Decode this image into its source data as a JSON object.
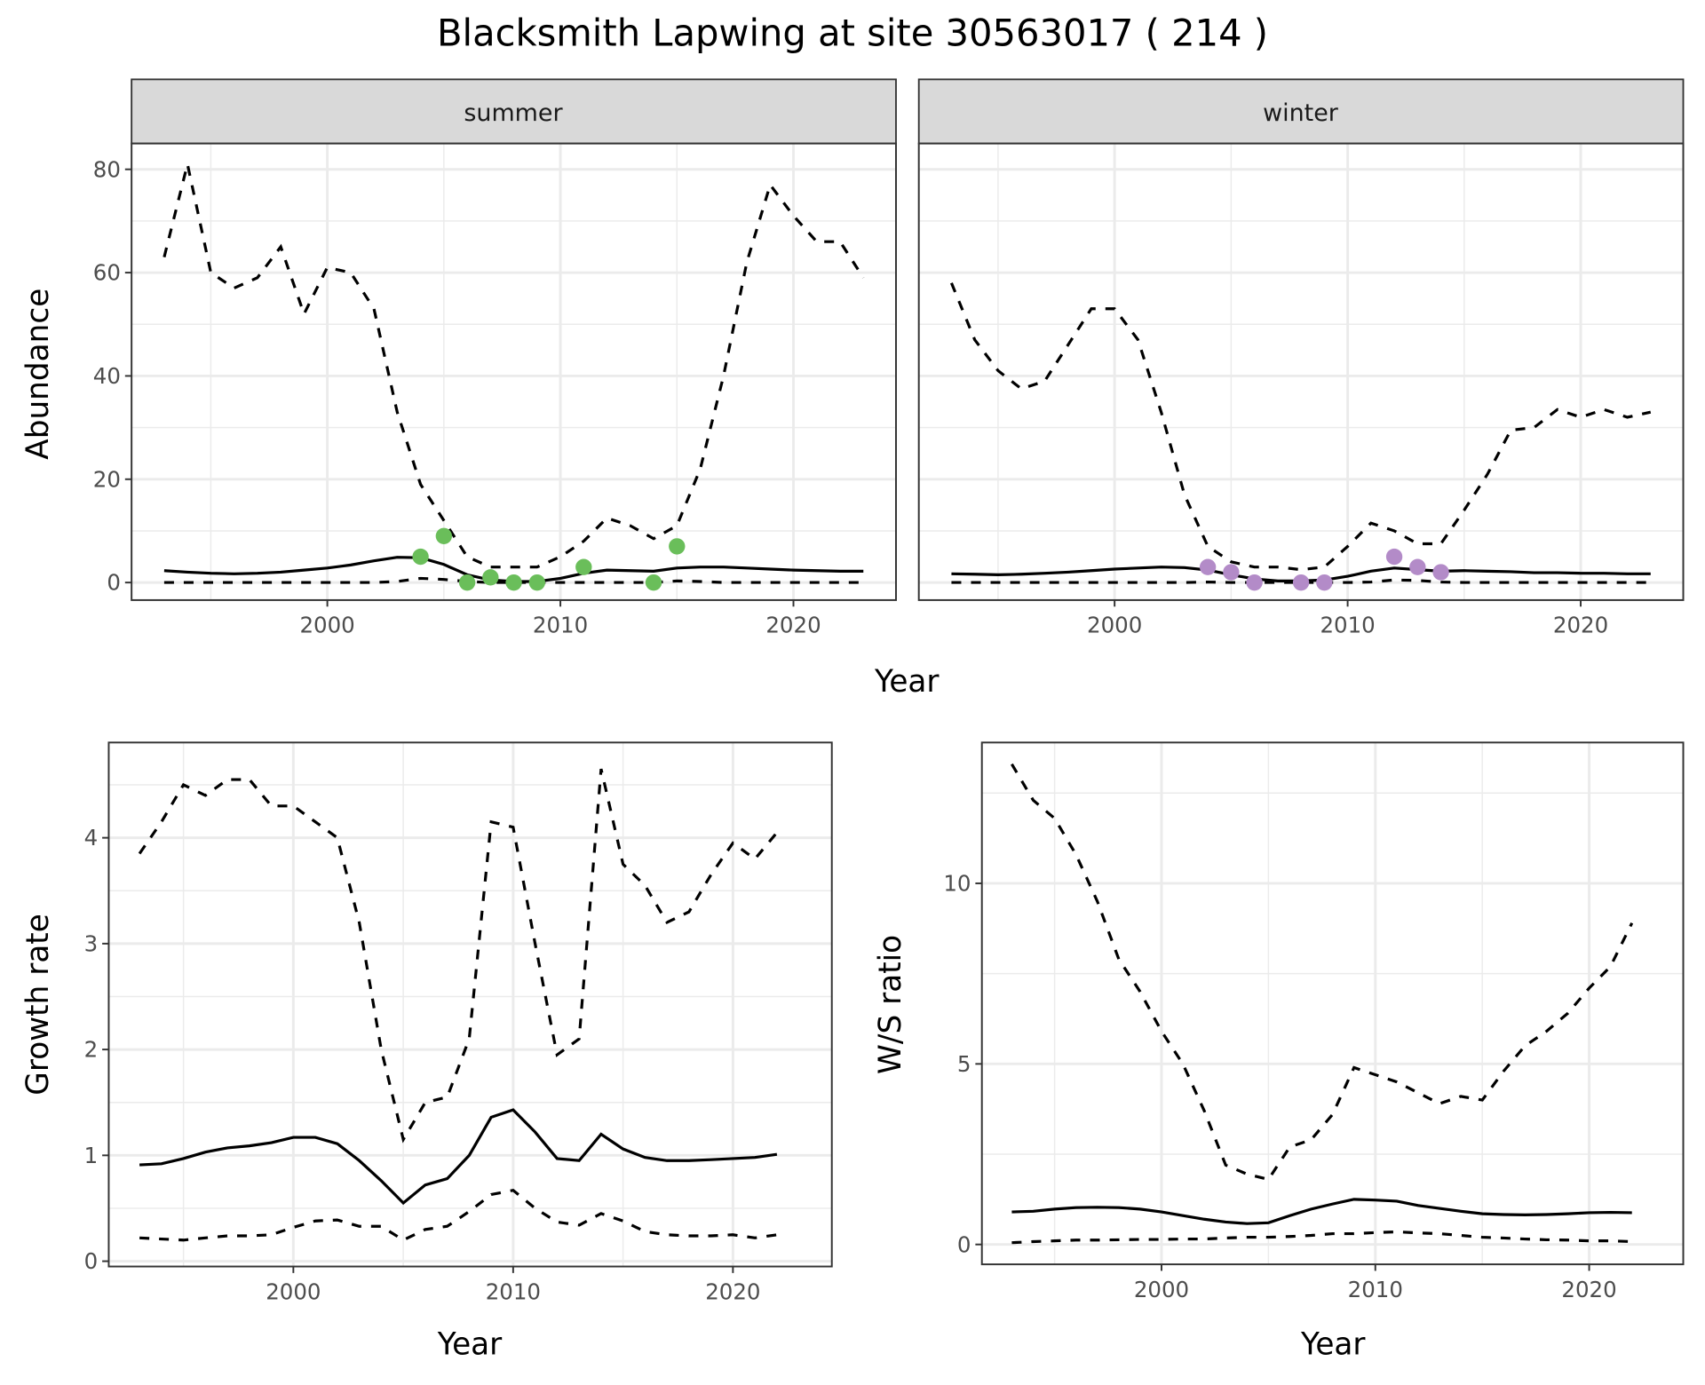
{
  "title": "Blacksmith Lapwing at site 30563017 ( 214 )",
  "colors": {
    "summer_points": "#6ABE5A",
    "winter_points": "#B38BC8",
    "lines": "#000000",
    "strip_bg": "#D9D9D9",
    "grid": "#EBEBEB"
  },
  "chart_data": [
    {
      "type": "line",
      "facet": "summer",
      "xlabel": "Year",
      "ylabel": "Abundance",
      "xlim": [
        1991.6,
        2024.4
      ],
      "ylim": [
        -3.4,
        85
      ],
      "xticks": [
        2000,
        2010,
        2020
      ],
      "yticks": [
        0,
        20,
        40,
        60,
        80
      ],
      "grid": true,
      "x": [
        1993,
        1994,
        1995,
        1996,
        1997,
        1998,
        1999,
        2000,
        2001,
        2002,
        2003,
        2004,
        2005,
        2006,
        2007,
        2008,
        2009,
        2010,
        2011,
        2012,
        2013,
        2014,
        2015,
        2016,
        2017,
        2018,
        2019,
        2020,
        2021,
        2022,
        2023
      ],
      "series": [
        {
          "style": "dashed-upper",
          "values": [
            63,
            81,
            60,
            57,
            59,
            65,
            52,
            61,
            60,
            53,
            33,
            19,
            12,
            5,
            3,
            3,
            3,
            5,
            8,
            12.5,
            11,
            8.5,
            11,
            22,
            40,
            62,
            77,
            71,
            66,
            66,
            59
          ]
        },
        {
          "style": "solid-mean",
          "values": [
            2.3,
            2.0,
            1.8,
            1.7,
            1.8,
            2.0,
            2.4,
            2.8,
            3.4,
            4.2,
            4.9,
            4.8,
            3.5,
            1.5,
            0.5,
            0.2,
            0.2,
            0.8,
            1.8,
            2.4,
            2.3,
            2.2,
            2.8,
            3.0,
            3.0,
            2.8,
            2.6,
            2.4,
            2.3,
            2.2,
            2.2
          ]
        },
        {
          "style": "dashed-lower",
          "values": [
            0,
            0,
            0,
            0,
            0,
            0,
            0,
            0,
            0,
            0,
            0.2,
            0.8,
            0.6,
            0.2,
            0,
            0,
            0,
            0,
            0,
            0,
            0,
            0,
            0.3,
            0.2,
            0,
            0,
            0,
            0,
            0,
            0,
            0
          ]
        }
      ],
      "points": {
        "x": [
          2004,
          2005,
          2006,
          2007,
          2008,
          2009,
          2011,
          2014,
          2015
        ],
        "y": [
          5,
          9,
          0,
          1,
          0,
          0,
          3,
          0,
          7
        ]
      }
    },
    {
      "type": "line",
      "facet": "winter",
      "xlabel": "Year",
      "ylabel": "Abundance",
      "xlim": [
        1991.6,
        2024.4
      ],
      "ylim": [
        -3.4,
        85
      ],
      "xticks": [
        2000,
        2010,
        2020
      ],
      "yticks": [
        0,
        20,
        40,
        60,
        80
      ],
      "grid": true,
      "x": [
        1993,
        1994,
        1995,
        1996,
        1997,
        1998,
        1999,
        2000,
        2001,
        2002,
        2003,
        2004,
        2005,
        2006,
        2007,
        2008,
        2009,
        2010,
        2011,
        2012,
        2013,
        2014,
        2015,
        2016,
        2017,
        2018,
        2019,
        2020,
        2021,
        2022,
        2023
      ],
      "series": [
        {
          "style": "dashed-upper",
          "values": [
            58,
            47,
            41,
            37.5,
            39,
            46,
            53,
            53,
            47,
            33,
            17,
            7,
            4,
            3,
            3,
            2.5,
            3,
            7,
            11.5,
            10,
            7.5,
            7.5,
            14,
            21,
            29.5,
            30,
            33.5,
            32,
            33.5,
            32,
            33
          ]
        },
        {
          "style": "solid-mean",
          "values": [
            1.7,
            1.6,
            1.5,
            1.6,
            1.8,
            2.0,
            2.3,
            2.6,
            2.8,
            3.0,
            2.9,
            2.4,
            1.5,
            0.7,
            0.3,
            0.3,
            0.5,
            1.2,
            2.2,
            2.8,
            2.5,
            2.2,
            2.3,
            2.2,
            2.1,
            1.9,
            1.9,
            1.8,
            1.8,
            1.7,
            1.7
          ]
        },
        {
          "style": "dashed-lower",
          "values": [
            0,
            0,
            0,
            0,
            0,
            0,
            0,
            0,
            0,
            0,
            0,
            0.1,
            0,
            0,
            0,
            0,
            0,
            0,
            0.1,
            0.5,
            0.4,
            0.1,
            0,
            0,
            0,
            0,
            0,
            0,
            0,
            0,
            0
          ]
        }
      ],
      "points": {
        "x": [
          2004,
          2005,
          2006,
          2008,
          2009,
          2012,
          2013,
          2014
        ],
        "y": [
          3,
          2,
          0,
          0,
          0,
          5,
          3,
          2
        ]
      }
    },
    {
      "type": "line",
      "xlabel": "Year",
      "ylabel": "Growth rate",
      "xlim": [
        1991.6,
        2024.5
      ],
      "ylim": [
        -0.05,
        4.9
      ],
      "xticks": [
        2000,
        2010,
        2020
      ],
      "yticks": [
        0,
        1,
        2,
        3,
        4
      ],
      "grid": true,
      "x": [
        1993,
        1994,
        1995,
        1996,
        1997,
        1998,
        1999,
        2000,
        2001,
        2002,
        2003,
        2004,
        2005,
        2006,
        2007,
        2008,
        2009,
        2010,
        2011,
        2012,
        2013,
        2014,
        2015,
        2016,
        2017,
        2018,
        2019,
        2020,
        2021,
        2022
      ],
      "series": [
        {
          "style": "dashed-upper",
          "values": [
            3.85,
            4.15,
            4.5,
            4.4,
            4.55,
            4.55,
            4.3,
            4.3,
            4.15,
            4.0,
            3.2,
            2.0,
            1.15,
            1.5,
            1.55,
            2.1,
            4.15,
            4.1,
            3.0,
            1.95,
            2.1,
            4.65,
            3.75,
            3.55,
            3.2,
            3.3,
            3.65,
            3.95,
            3.8,
            4.05
          ]
        },
        {
          "style": "solid-mean",
          "values": [
            0.91,
            0.92,
            0.97,
            1.03,
            1.07,
            1.09,
            1.12,
            1.17,
            1.17,
            1.11,
            0.95,
            0.76,
            0.55,
            0.72,
            0.78,
            1.0,
            1.36,
            1.43,
            1.22,
            0.97,
            0.95,
            1.2,
            1.06,
            0.98,
            0.95,
            0.95,
            0.96,
            0.97,
            0.98,
            1.01
          ]
        },
        {
          "style": "dashed-lower",
          "values": [
            0.22,
            0.21,
            0.2,
            0.22,
            0.24,
            0.24,
            0.25,
            0.32,
            0.38,
            0.39,
            0.33,
            0.33,
            0.2,
            0.3,
            0.33,
            0.47,
            0.63,
            0.67,
            0.5,
            0.37,
            0.34,
            0.45,
            0.38,
            0.28,
            0.25,
            0.24,
            0.24,
            0.25,
            0.22,
            0.25
          ]
        }
      ]
    },
    {
      "type": "line",
      "xlabel": "Year",
      "ylabel": "W/S ratio",
      "xlim": [
        1991.6,
        2024.4
      ],
      "ylim": [
        -0.55,
        13.9
      ],
      "xticks": [
        2000,
        2010,
        2020
      ],
      "yticks": [
        0,
        5,
        10
      ],
      "grid": true,
      "x": [
        1993,
        1994,
        1995,
        1996,
        1997,
        1998,
        1999,
        2000,
        2001,
        2002,
        2003,
        2004,
        2005,
        2006,
        2007,
        2008,
        2009,
        2010,
        2011,
        2012,
        2013,
        2014,
        2015,
        2016,
        2017,
        2018,
        2019,
        2020,
        2021,
        2022
      ],
      "series": [
        {
          "style": "dashed-upper",
          "values": [
            13.3,
            12.3,
            11.8,
            10.8,
            9.5,
            7.9,
            7.0,
            5.9,
            5.0,
            3.7,
            2.2,
            1.95,
            1.8,
            2.7,
            2.9,
            3.6,
            4.9,
            4.7,
            4.5,
            4.2,
            3.9,
            4.1,
            4.0,
            4.8,
            5.5,
            5.9,
            6.4,
            7.1,
            7.7,
            8.9
          ]
        },
        {
          "style": "solid-mean",
          "values": [
            0.9,
            0.92,
            0.98,
            1.02,
            1.03,
            1.02,
            0.98,
            0.9,
            0.8,
            0.7,
            0.62,
            0.58,
            0.6,
            0.8,
            0.98,
            1.12,
            1.25,
            1.23,
            1.2,
            1.08,
            1.0,
            0.92,
            0.85,
            0.83,
            0.82,
            0.83,
            0.85,
            0.88,
            0.89,
            0.88
          ]
        },
        {
          "style": "dashed-lower",
          "values": [
            0.05,
            0.08,
            0.1,
            0.12,
            0.12,
            0.13,
            0.14,
            0.14,
            0.15,
            0.15,
            0.18,
            0.2,
            0.2,
            0.22,
            0.25,
            0.3,
            0.3,
            0.33,
            0.35,
            0.32,
            0.3,
            0.25,
            0.2,
            0.18,
            0.15,
            0.13,
            0.12,
            0.1,
            0.1,
            0.08
          ]
        }
      ]
    }
  ]
}
